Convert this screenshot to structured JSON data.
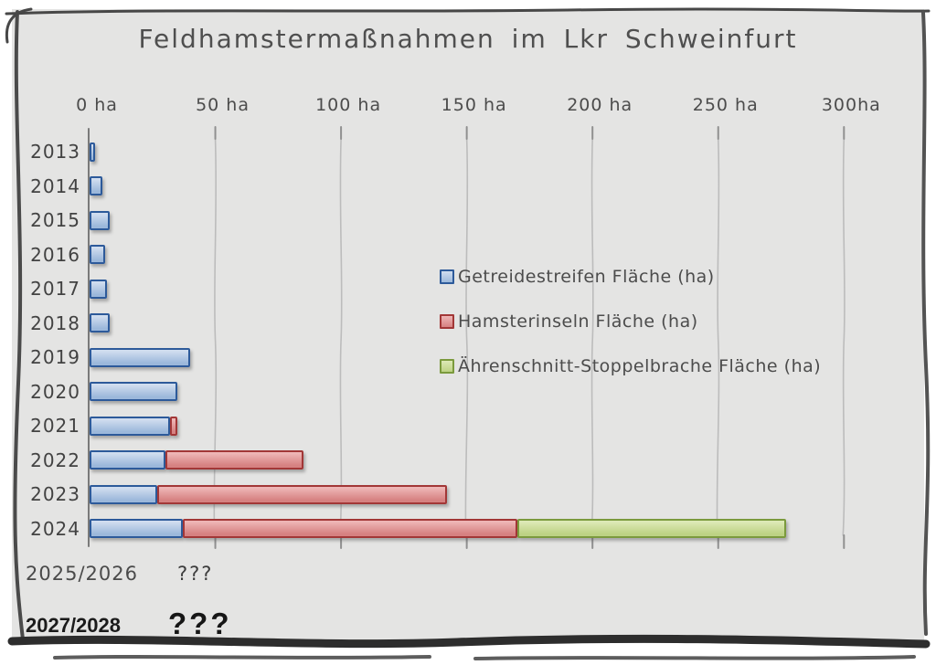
{
  "chart_data": {
    "type": "bar",
    "orientation": "horizontal",
    "stacked": true,
    "title": "Feldhamstermaßnahmen im Lkr Schweinfurt",
    "unit": "ha",
    "categories": [
      "2013",
      "2014",
      "2015",
      "2016",
      "2017",
      "2018",
      "2019",
      "2020",
      "2021",
      "2022",
      "2023",
      "2024"
    ],
    "series": [
      {
        "name": "Getreidestreifen Fläche (ha)",
        "color_top": "#d0ddef",
        "color_bottom": "#9cb8db",
        "color_border": "#2d5a9a",
        "values": [
          2,
          5,
          8,
          6,
          7,
          8,
          40,
          35,
          32,
          30,
          27,
          37
        ]
      },
      {
        "name": "Hamsterinseln Fläche (ha)",
        "color_top": "#eeb6b6",
        "color_bottom": "#d68181",
        "color_border": "#a23737",
        "values": [
          0,
          0,
          0,
          0,
          0,
          0,
          0,
          0,
          3,
          55,
          115,
          133
        ]
      },
      {
        "name": "Ährenschnitt-Stoppelbrache Fläche (ha)",
        "color_top": "#dde9b6",
        "color_bottom": "#bdd284",
        "color_border": "#7b9a3d",
        "values": [
          0,
          0,
          0,
          0,
          0,
          0,
          0,
          0,
          0,
          0,
          0,
          107
        ]
      }
    ],
    "x_ticks": [
      {
        "value": 0,
        "label": "0 ha"
      },
      {
        "value": 50,
        "label": "50 ha"
      },
      {
        "value": 100,
        "label": "100 ha"
      },
      {
        "value": 150,
        "label": "150 ha"
      },
      {
        "value": 200,
        "label": "200 ha"
      },
      {
        "value": 250,
        "label": "250 ha"
      },
      {
        "value": 300,
        "label": "300ha"
      }
    ],
    "xlim": [
      0,
      315
    ],
    "grid": "vertical hand-drawn lines at 50 ha steps",
    "legend_position": "middle-right",
    "future_rows": [
      {
        "label": "2025/2026",
        "value": "???"
      },
      {
        "label": "2027/2028",
        "value": "???"
      }
    ]
  },
  "style_colors": {
    "panel_background": "#e4e4e3",
    "frame_stroke": "#3c3c3c",
    "axis_line": "#7a7a7a",
    "gridline": "#bcbcbc",
    "text": "#4a4a4a"
  }
}
